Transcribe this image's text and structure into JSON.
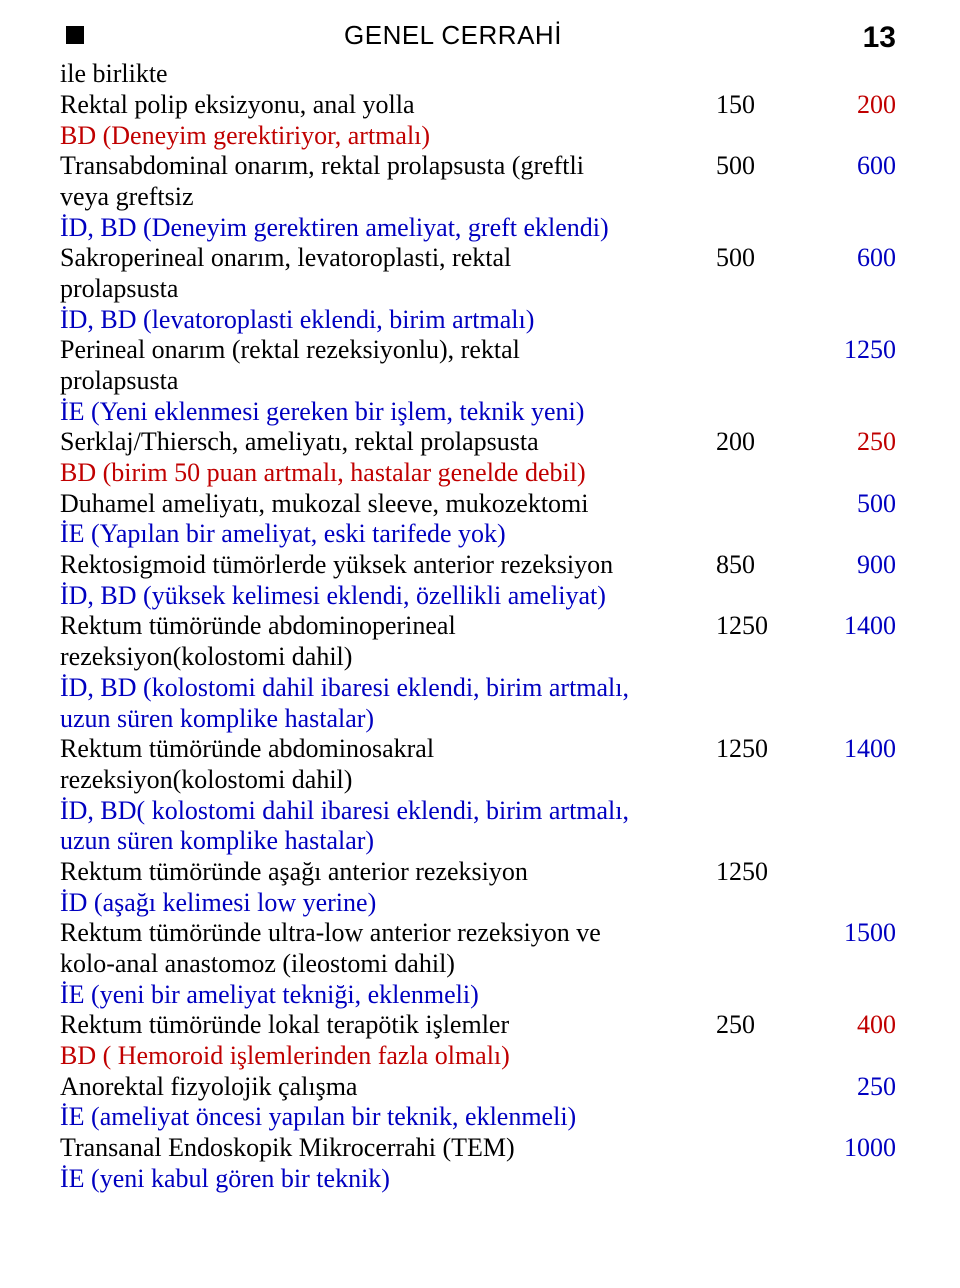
{
  "header": {
    "title": "GENEL CERRAHİ",
    "page_number": "13"
  },
  "rows": [
    {
      "desc": [
        {
          "t": "ile birlikte",
          "c": "black"
        }
      ]
    },
    {
      "desc": [
        {
          "t": "Rektal polip eksizyonu, anal yolla",
          "c": "black"
        }
      ],
      "v1": {
        "t": "150",
        "c": "black"
      },
      "v2": {
        "t": "200",
        "c": "red"
      }
    },
    {
      "desc": [
        {
          "t": "BD (Deneyim gerektiriyor, artmalı)",
          "c": "red"
        }
      ]
    },
    {
      "desc": [
        {
          "t": "Transabdominal onarım, rektal prolapsusta (greftli",
          "c": "black"
        }
      ],
      "v1": {
        "t": "500",
        "c": "black"
      },
      "v2": {
        "t": "600",
        "c": "blue"
      }
    },
    {
      "desc": [
        {
          "t": "veya greftsiz",
          "c": "black"
        }
      ]
    },
    {
      "desc": [
        {
          "t": "İD, BD (Deneyim gerektiren ameliyat, greft eklendi)",
          "c": "blue"
        }
      ]
    },
    {
      "desc": [
        {
          "t": "Sakroperineal onarım, levatoroplasti, rektal",
          "c": "black"
        }
      ],
      "v1": {
        "t": "500",
        "c": "black"
      },
      "v2": {
        "t": "600",
        "c": "blue"
      }
    },
    {
      "desc": [
        {
          "t": "prolapsusta",
          "c": "black"
        }
      ]
    },
    {
      "desc": [
        {
          "t": "İD, BD (levatoroplasti eklendi, birim artmalı)",
          "c": "blue"
        }
      ]
    },
    {
      "desc": [
        {
          "t": "Perineal onarım (rektal rezeksiyonlu), rektal",
          "c": "black"
        }
      ],
      "v2": {
        "t": "1250",
        "c": "blue"
      }
    },
    {
      "desc": [
        {
          "t": "prolapsusta",
          "c": "black"
        }
      ]
    },
    {
      "desc": [
        {
          "t": "İE (Yeni eklenmesi gereken bir işlem, teknik yeni)",
          "c": "blue"
        }
      ]
    },
    {
      "desc": [
        {
          "t": "Serklaj/Thiersch, ameliyatı, rektal prolapsusta",
          "c": "black"
        }
      ],
      "v1": {
        "t": "200",
        "c": "black"
      },
      "v2": {
        "t": "250",
        "c": "red"
      }
    },
    {
      "desc": [
        {
          "t": " BD (birim 50 puan artmalı, hastalar genelde debil)",
          "c": "red"
        }
      ]
    },
    {
      "desc": [
        {
          "t": "Duhamel ameliyatı, mukozal sleeve, mukozektomi",
          "c": "black"
        }
      ],
      "v2": {
        "t": "500",
        "c": "blue"
      }
    },
    {
      "desc": [
        {
          "t": "İE (Yapılan bir ameliyat, eski tarifede yok)",
          "c": "blue"
        }
      ]
    },
    {
      "desc": [
        {
          "t": "Rektosigmoid tümörlerde yüksek anterior rezeksiyon",
          "c": "black"
        }
      ],
      "v1": {
        "t": "850",
        "c": "black"
      },
      "v2": {
        "t": "900",
        "c": "blue"
      }
    },
    {
      "desc": [
        {
          "t": "İD, BD (yüksek kelimesi eklendi, özellikli ameliyat)",
          "c": "blue"
        }
      ]
    },
    {
      "desc": [
        {
          "t": "Rektum tümöründe abdominoperineal",
          "c": "black"
        }
      ],
      "v1": {
        "t": "1250",
        "c": "black"
      },
      "v2": {
        "t": "1400",
        "c": "blue"
      }
    },
    {
      "desc": [
        {
          "t": "rezeksiyon(kolostomi dahil)",
          "c": "black"
        }
      ]
    },
    {
      "desc": [
        {
          "t": "İD, BD (kolostomi dahil ibaresi eklendi, birim artmalı,",
          "c": "blue"
        }
      ]
    },
    {
      "desc": [
        {
          "t": "uzun süren komplike hastalar)",
          "c": "blue"
        }
      ]
    },
    {
      "desc": [
        {
          "t": "Rektum tümöründe abdominosakral",
          "c": "black"
        }
      ],
      "v1": {
        "t": "1250",
        "c": "black"
      },
      "v2": {
        "t": "1400",
        "c": "blue"
      }
    },
    {
      "desc": [
        {
          "t": "rezeksiyon(kolostomi dahil)",
          "c": "black"
        }
      ]
    },
    {
      "desc": [
        {
          "t": "İD, BD( kolostomi dahil ibaresi eklendi, birim artmalı,",
          "c": "blue"
        }
      ]
    },
    {
      "desc": [
        {
          "t": "uzun süren komplike hastalar)",
          "c": "blue"
        }
      ]
    },
    {
      "desc": [
        {
          "t": "Rektum tümöründe aşağı  anterior rezeksiyon",
          "c": "black"
        }
      ],
      "v1": {
        "t": "1250",
        "c": "black"
      }
    },
    {
      "desc": [
        {
          "t": "İD (aşağı kelimesi low yerine)",
          "c": "blue"
        }
      ]
    },
    {
      "desc": [
        {
          "t": "Rektum tümöründe ultra-low anterior rezeksiyon ve",
          "c": "black"
        }
      ],
      "v2": {
        "t": "1500",
        "c": "blue"
      }
    },
    {
      "desc": [
        {
          "t": "kolo-anal anastomoz (ileostomi dahil)",
          "c": "black"
        }
      ]
    },
    {
      "desc": [
        {
          "t": "İE (yeni bir ameliyat tekniği, eklenmeli)",
          "c": "blue"
        }
      ]
    },
    {
      "desc": [
        {
          "t": "Rektum tümöründe lokal terapötik işlemler",
          "c": "black"
        }
      ],
      "v1": {
        "t": "250",
        "c": "black"
      },
      "v2": {
        "t": "400",
        "c": "red"
      }
    },
    {
      "desc": [
        {
          "t": "BD ( Hemoroid işlemlerinden fazla olmalı)",
          "c": "red"
        }
      ]
    },
    {
      "desc": [
        {
          "t": "Anorektal fizyolojik çalışma",
          "c": "black"
        }
      ],
      "v2": {
        "t": "250",
        "c": "blue"
      }
    },
    {
      "desc": [
        {
          "t": "İE (ameliyat öncesi yapılan bir teknik, eklenmeli)",
          "c": "blue"
        }
      ]
    },
    {
      "desc": [
        {
          "t": "Transanal Endoskopik Mikrocerrahi (TEM)",
          "c": "black"
        }
      ],
      "v2": {
        "t": "1000",
        "c": "blue"
      }
    },
    {
      "desc": [
        {
          "t": "İE (yeni kabul gören bir teknik)",
          "c": "blue"
        }
      ]
    }
  ]
}
